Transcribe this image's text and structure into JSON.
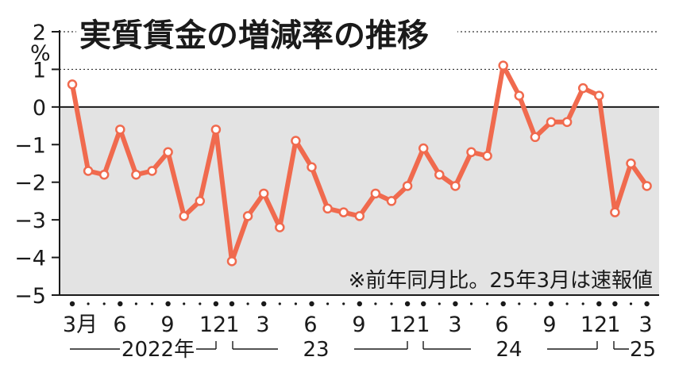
{
  "chart_data": {
    "type": "line",
    "title": "実質賃金の増減率の推移",
    "unit": "%",
    "note": "※前年同月比。25年3月は速報値",
    "ylim": [
      -5,
      2
    ],
    "yticks": [
      "2",
      "1",
      "0",
      "−1",
      "−2",
      "−3",
      "−4",
      "−5"
    ],
    "x_tick_labels": [
      "3月",
      "6",
      "9",
      "12",
      "1",
      "3",
      "6",
      "9",
      "12",
      "1",
      "3",
      "6",
      "9",
      "12",
      "1",
      "3"
    ],
    "year_labels": [
      "2022年",
      "23",
      "24",
      "25"
    ],
    "x": [
      "2022-03",
      "2022-04",
      "2022-05",
      "2022-06",
      "2022-07",
      "2022-08",
      "2022-09",
      "2022-10",
      "2022-11",
      "2022-12",
      "2023-01",
      "2023-02",
      "2023-03",
      "2023-04",
      "2023-05",
      "2023-06",
      "2023-07",
      "2023-08",
      "2023-09",
      "2023-10",
      "2023-11",
      "2023-12",
      "2024-01",
      "2024-02",
      "2024-03",
      "2024-04",
      "2024-05",
      "2024-06",
      "2024-07",
      "2024-08",
      "2024-09",
      "2024-10",
      "2024-11",
      "2024-12",
      "2025-01",
      "2025-02",
      "2025-03"
    ],
    "series": [
      {
        "values": [
          0.6,
          -1.7,
          -1.8,
          -0.6,
          -1.8,
          -1.7,
          -1.2,
          -2.9,
          -2.5,
          -0.6,
          -4.1,
          -2.9,
          -2.3,
          -3.2,
          -0.9,
          -1.6,
          -2.7,
          -2.8,
          -2.9,
          -2.3,
          -2.5,
          -2.1,
          -1.1,
          -1.8,
          -2.1,
          -1.2,
          -1.3,
          1.1,
          0.3,
          -0.8,
          -0.4,
          -0.4,
          0.5,
          0.3,
          -2.8,
          -1.5,
          -2.1
        ],
        "color": "#f06a4e"
      }
    ],
    "colors": {
      "line": "#f06a4e",
      "negative_fill": "#e3e3e3",
      "axis": "#1a1a1a"
    },
    "grid": "dotted at positive ticks"
  }
}
